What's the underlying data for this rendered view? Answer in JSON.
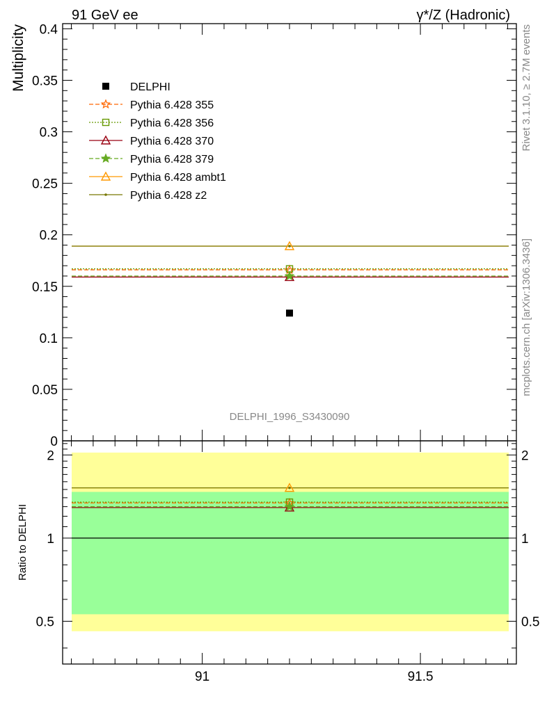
{
  "header": {
    "left_label": "91 GeV ee",
    "right_label": "γ*/Z (Hadronic)"
  },
  "side_labels": {
    "rivet": "Rivet 3.1.10, ≥ 2.7M events",
    "mcplots": "mcplots.cern.ch [arXiv:1306.3436]"
  },
  "analysis_id": "DELPHI_1996_S3430090",
  "chart_data": [
    {
      "type": "scatter",
      "panel": "main",
      "ylabel": "Multiplicity",
      "xlim": [
        90.68,
        91.72
      ],
      "ylim": [
        0,
        0.405
      ],
      "x_ticks": [
        91,
        91.5
      ],
      "x_tick_labels": [
        "91",
        "91.5"
      ],
      "y_ticks": [
        0,
        0.05,
        0.1,
        0.15,
        0.2,
        0.25,
        0.3,
        0.35,
        0.4
      ],
      "y_tick_labels": [
        "0",
        "0.05",
        "0.1",
        "0.15",
        "0.2",
        "0.25",
        "0.3",
        "0.35",
        "0.4"
      ],
      "legend_position": "top-left",
      "series": [
        {
          "name": "DELPHI",
          "kind": "data",
          "marker": "square-filled",
          "color": "#000000",
          "x": [
            91.2
          ],
          "y": [
            0.124
          ]
        },
        {
          "name": "Pythia 6.428 355",
          "kind": "mc",
          "marker": "star-open",
          "line": "dashed",
          "color": "#ff6600",
          "x": [
            91.2
          ],
          "y": [
            0.166
          ]
        },
        {
          "name": "Pythia 6.428 356",
          "kind": "mc",
          "marker": "square-open",
          "line": "dotted",
          "color": "#669900",
          "x": [
            91.2
          ],
          "y": [
            0.167
          ]
        },
        {
          "name": "Pythia 6.428 370",
          "kind": "mc",
          "marker": "triangle-open",
          "line": "solid",
          "color": "#990011",
          "x": [
            91.2
          ],
          "y": [
            0.159
          ]
        },
        {
          "name": "Pythia 6.428 379",
          "kind": "mc",
          "marker": "star-filled",
          "line": "dashed",
          "color": "#66aa22",
          "x": [
            91.2
          ],
          "y": [
            0.16
          ]
        },
        {
          "name": "Pythia 6.428 ambt1",
          "kind": "mc",
          "marker": "triangle-open",
          "line": "solid",
          "color": "#ff9900",
          "x": [
            91.2
          ],
          "y": [
            0.189
          ]
        },
        {
          "name": "Pythia 6.428 z2",
          "kind": "mc",
          "marker": "dot",
          "line": "solid",
          "color": "#777700",
          "x": [
            91.2
          ],
          "y": [
            0.189
          ]
        }
      ]
    },
    {
      "type": "scatter",
      "panel": "ratio",
      "ylabel": "Ratio to DELPHI",
      "xlim": [
        90.68,
        91.72
      ],
      "ylim": [
        0.35,
        2.25
      ],
      "y_ticks": [
        0.5,
        1,
        2
      ],
      "y_tick_labels": [
        "0.5",
        "1",
        "2"
      ],
      "bands": [
        {
          "name": "2-sigma",
          "color": "#ffff99",
          "range": [
            0.46,
            2.04
          ]
        },
        {
          "name": "1-sigma",
          "color": "#99ff99",
          "range": [
            0.53,
            1.47
          ]
        }
      ],
      "reference": 1,
      "series": [
        {
          "name": "Pythia 6.428 355",
          "y": [
            1.34
          ]
        },
        {
          "name": "Pythia 6.428 356",
          "y": [
            1.35
          ]
        },
        {
          "name": "Pythia 6.428 370",
          "y": [
            1.29
          ]
        },
        {
          "name": "Pythia 6.428 379",
          "y": [
            1.3
          ]
        },
        {
          "name": "Pythia 6.428 ambt1",
          "y": [
            1.52
          ]
        },
        {
          "name": "Pythia 6.428 z2",
          "y": [
            1.52
          ]
        }
      ]
    }
  ]
}
